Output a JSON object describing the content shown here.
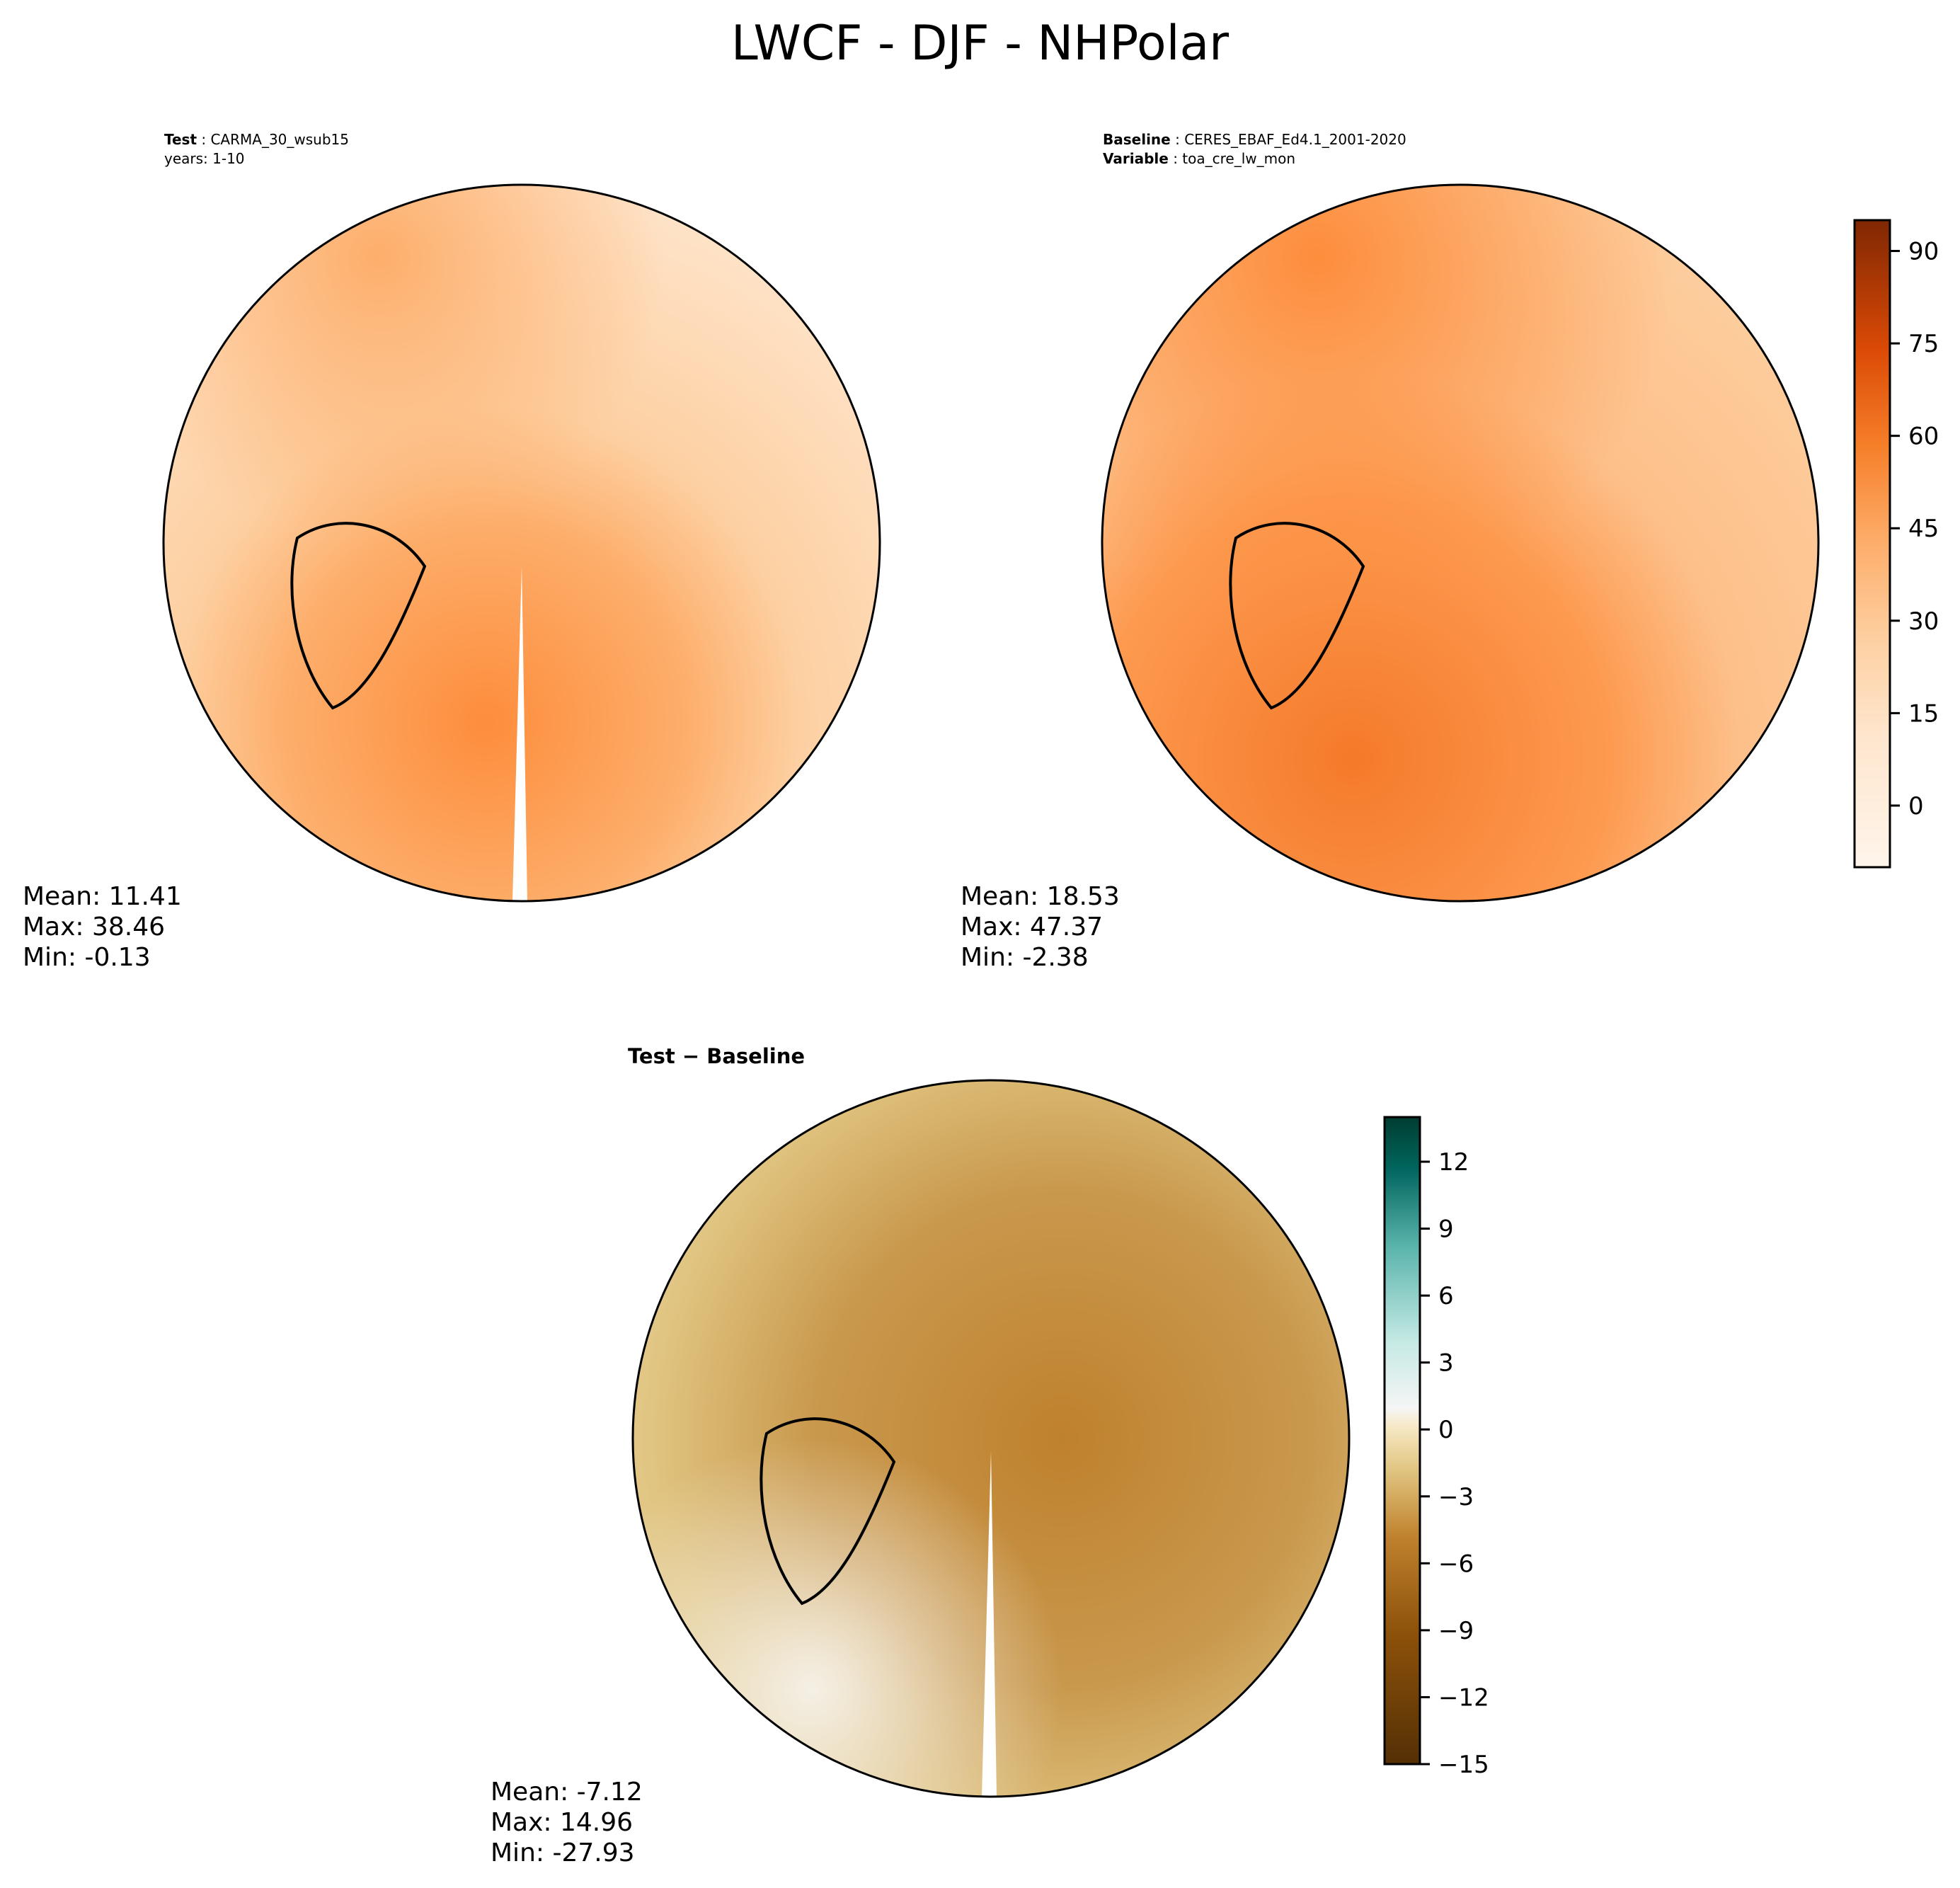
{
  "title": "LWCF - DJF - NHPolar",
  "panels": {
    "test": {
      "label": "Test",
      "name": "CARMA_30_wsub15",
      "years": "years: 1-10",
      "mean": "Mean: 11.41",
      "max": "Max: 38.46",
      "min": "Min: -0.13"
    },
    "baseline": {
      "label": "Baseline",
      "name": "CERES_EBAF_Ed4.1_2001-2020",
      "var_label": "Variable",
      "var": "toa_cre_lw_mon",
      "mean": "Mean: 18.53",
      "max": "Max: 47.37",
      "min": "Min: -2.38"
    },
    "diff": {
      "title": "Test − Baseline",
      "mean": "Mean: -7.12",
      "max": "Max: 14.96",
      "min": "Min: -27.93"
    }
  },
  "chart_data": [
    {
      "type": "heatmap",
      "projection": "north-polar-stereo",
      "title": "Test: CARMA_30_wsub15",
      "colormap": "Oranges",
      "range": [
        -10,
        95
      ],
      "ticks": [
        "90",
        "75",
        "60",
        "45",
        "30",
        "15",
        "0"
      ],
      "tick_values": [
        90,
        75,
        60,
        45,
        30,
        15,
        0
      ],
      "mean": 11.41,
      "max": 38.46,
      "min": -0.13
    },
    {
      "type": "heatmap",
      "projection": "north-polar-stereo",
      "title": "Baseline: CERES_EBAF_Ed4.1_2001-2020",
      "colormap": "Oranges",
      "range": [
        -10,
        95
      ],
      "mean": 18.53,
      "max": 47.37,
      "min": -2.38
    },
    {
      "type": "heatmap",
      "projection": "north-polar-stereo",
      "title": "Test − Baseline",
      "colormap": "BrBG",
      "range": [
        -15,
        14
      ],
      "ticks": [
        "12",
        "9",
        "6",
        "3",
        "0",
        "−3",
        "−6",
        "−9",
        "−12",
        "−15"
      ],
      "tick_values": [
        12,
        9,
        6,
        3,
        0,
        -3,
        -6,
        -9,
        -12,
        -15
      ],
      "mean": -7.12,
      "max": 14.96,
      "min": -27.93
    }
  ]
}
